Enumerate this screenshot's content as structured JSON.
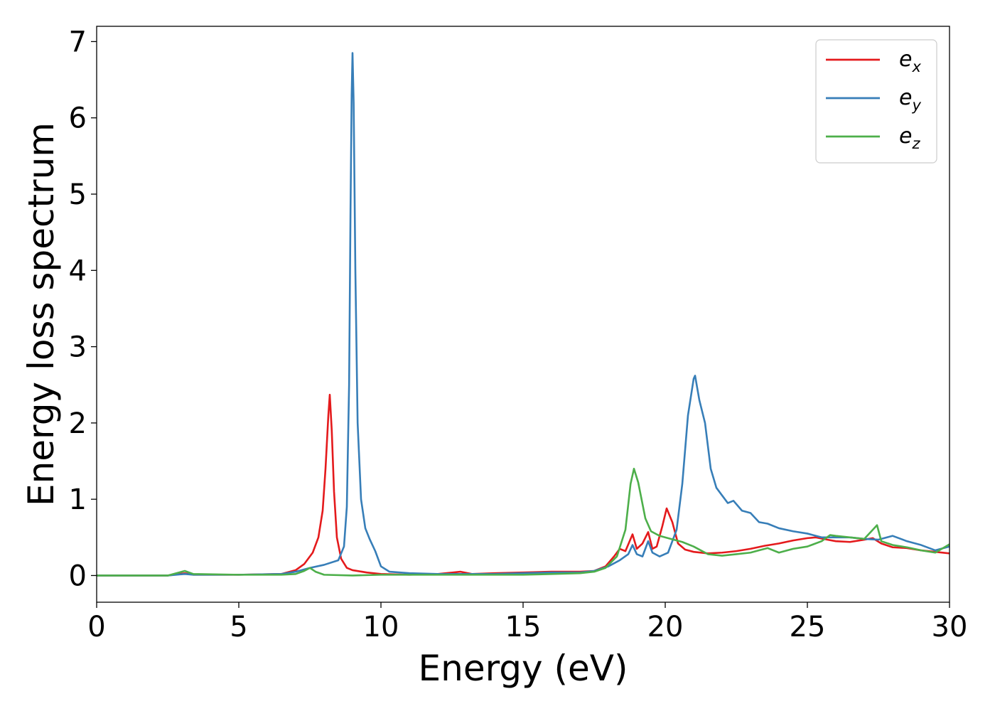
{
  "chart_data": {
    "type": "line",
    "title": "",
    "xlabel": "Energy (eV)",
    "ylabel": "Energy loss spectrum",
    "xlim": [
      0,
      30
    ],
    "ylim": [
      -0.35,
      7.2
    ],
    "xticks": [
      0,
      5,
      10,
      15,
      20,
      25,
      30
    ],
    "yticks": [
      0,
      1,
      2,
      3,
      4,
      5,
      6,
      7
    ],
    "grid": false,
    "legend_position": "top-right",
    "series": [
      {
        "name": "e_x",
        "label_main": "e",
        "label_sub": "x",
        "color": "#e41a1c",
        "points": [
          [
            0,
            0
          ],
          [
            2.5,
            0.0
          ],
          [
            3.1,
            0.03
          ],
          [
            3.4,
            0.01
          ],
          [
            5,
            0.01
          ],
          [
            6.5,
            0.02
          ],
          [
            7.0,
            0.07
          ],
          [
            7.3,
            0.15
          ],
          [
            7.6,
            0.3
          ],
          [
            7.8,
            0.5
          ],
          [
            7.95,
            0.85
          ],
          [
            8.05,
            1.4
          ],
          [
            8.15,
            2.1
          ],
          [
            8.2,
            2.37
          ],
          [
            8.27,
            1.9
          ],
          [
            8.35,
            1.1
          ],
          [
            8.45,
            0.5
          ],
          [
            8.6,
            0.22
          ],
          [
            8.8,
            0.1
          ],
          [
            9.0,
            0.07
          ],
          [
            9.5,
            0.04
          ],
          [
            10,
            0.02
          ],
          [
            11,
            0.01
          ],
          [
            12,
            0.02
          ],
          [
            12.8,
            0.05
          ],
          [
            13.2,
            0.02
          ],
          [
            14,
            0.03
          ],
          [
            15,
            0.04
          ],
          [
            16,
            0.05
          ],
          [
            17,
            0.05
          ],
          [
            17.5,
            0.06
          ],
          [
            17.9,
            0.12
          ],
          [
            18.2,
            0.25
          ],
          [
            18.4,
            0.35
          ],
          [
            18.6,
            0.32
          ],
          [
            18.85,
            0.54
          ],
          [
            19.0,
            0.35
          ],
          [
            19.2,
            0.42
          ],
          [
            19.4,
            0.57
          ],
          [
            19.55,
            0.35
          ],
          [
            19.7,
            0.38
          ],
          [
            19.9,
            0.65
          ],
          [
            20.05,
            0.88
          ],
          [
            20.25,
            0.7
          ],
          [
            20.45,
            0.42
          ],
          [
            20.7,
            0.34
          ],
          [
            21,
            0.31
          ],
          [
            21.5,
            0.29
          ],
          [
            22,
            0.3
          ],
          [
            22.5,
            0.32
          ],
          [
            23,
            0.35
          ],
          [
            23.5,
            0.39
          ],
          [
            24,
            0.42
          ],
          [
            24.5,
            0.46
          ],
          [
            25,
            0.49
          ],
          [
            25.3,
            0.5
          ],
          [
            25.7,
            0.47
          ],
          [
            26,
            0.45
          ],
          [
            26.5,
            0.44
          ],
          [
            27,
            0.47
          ],
          [
            27.3,
            0.49
          ],
          [
            27.6,
            0.42
          ],
          [
            28,
            0.37
          ],
          [
            28.5,
            0.36
          ],
          [
            29,
            0.33
          ],
          [
            29.5,
            0.31
          ],
          [
            30,
            0.29
          ]
        ]
      },
      {
        "name": "e_y",
        "label_main": "e",
        "label_sub": "y",
        "color": "#377eb8",
        "points": [
          [
            0,
            0
          ],
          [
            2.5,
            0.0
          ],
          [
            3.1,
            0.02
          ],
          [
            3.4,
            0.01
          ],
          [
            5,
            0.01
          ],
          [
            6.5,
            0.02
          ],
          [
            7.0,
            0.05
          ],
          [
            7.5,
            0.1
          ],
          [
            8.0,
            0.14
          ],
          [
            8.5,
            0.2
          ],
          [
            8.7,
            0.38
          ],
          [
            8.8,
            0.9
          ],
          [
            8.88,
            2.5
          ],
          [
            8.93,
            4.8
          ],
          [
            8.97,
            6.3
          ],
          [
            9.0,
            6.85
          ],
          [
            9.04,
            6.2
          ],
          [
            9.1,
            4.0
          ],
          [
            9.18,
            2.0
          ],
          [
            9.3,
            1.0
          ],
          [
            9.45,
            0.62
          ],
          [
            9.6,
            0.48
          ],
          [
            9.8,
            0.32
          ],
          [
            10.0,
            0.12
          ],
          [
            10.3,
            0.05
          ],
          [
            11,
            0.03
          ],
          [
            12,
            0.02
          ],
          [
            13,
            0.02
          ],
          [
            14,
            0.02
          ],
          [
            15,
            0.03
          ],
          [
            16,
            0.04
          ],
          [
            17,
            0.04
          ],
          [
            17.5,
            0.06
          ],
          [
            18.0,
            0.12
          ],
          [
            18.4,
            0.2
          ],
          [
            18.7,
            0.28
          ],
          [
            18.85,
            0.4
          ],
          [
            19.0,
            0.28
          ],
          [
            19.2,
            0.25
          ],
          [
            19.4,
            0.45
          ],
          [
            19.55,
            0.3
          ],
          [
            19.8,
            0.25
          ],
          [
            20.1,
            0.3
          ],
          [
            20.4,
            0.6
          ],
          [
            20.6,
            1.2
          ],
          [
            20.8,
            2.1
          ],
          [
            21.0,
            2.58
          ],
          [
            21.05,
            2.62
          ],
          [
            21.2,
            2.3
          ],
          [
            21.4,
            2.0
          ],
          [
            21.6,
            1.4
          ],
          [
            21.8,
            1.15
          ],
          [
            22.0,
            1.05
          ],
          [
            22.2,
            0.95
          ],
          [
            22.4,
            0.98
          ],
          [
            22.7,
            0.85
          ],
          [
            23.0,
            0.82
          ],
          [
            23.3,
            0.7
          ],
          [
            23.6,
            0.68
          ],
          [
            24.0,
            0.62
          ],
          [
            24.5,
            0.58
          ],
          [
            25,
            0.55
          ],
          [
            25.5,
            0.5
          ],
          [
            26,
            0.5
          ],
          [
            26.5,
            0.5
          ],
          [
            27,
            0.48
          ],
          [
            27.5,
            0.47
          ],
          [
            28,
            0.52
          ],
          [
            28.5,
            0.45
          ],
          [
            29,
            0.4
          ],
          [
            29.5,
            0.33
          ],
          [
            30,
            0.38
          ]
        ]
      },
      {
        "name": "e_z",
        "label_main": "e",
        "label_sub": "z",
        "color": "#4daf4a",
        "points": [
          [
            0,
            0
          ],
          [
            2.5,
            0.0
          ],
          [
            3.1,
            0.06
          ],
          [
            3.4,
            0.02
          ],
          [
            5,
            0.01
          ],
          [
            6.5,
            0.01
          ],
          [
            7.0,
            0.02
          ],
          [
            7.3,
            0.06
          ],
          [
            7.5,
            0.1
          ],
          [
            7.7,
            0.05
          ],
          [
            8.0,
            0.01
          ],
          [
            9,
            0.0
          ],
          [
            10,
            0.01
          ],
          [
            11,
            0.01
          ],
          [
            12,
            0.01
          ],
          [
            13,
            0.01
          ],
          [
            14,
            0.01
          ],
          [
            15,
            0.01
          ],
          [
            16,
            0.02
          ],
          [
            17,
            0.03
          ],
          [
            17.5,
            0.05
          ],
          [
            17.9,
            0.1
          ],
          [
            18.3,
            0.25
          ],
          [
            18.6,
            0.6
          ],
          [
            18.78,
            1.2
          ],
          [
            18.9,
            1.4
          ],
          [
            19.05,
            1.22
          ],
          [
            19.3,
            0.75
          ],
          [
            19.5,
            0.58
          ],
          [
            19.8,
            0.52
          ],
          [
            20.2,
            0.48
          ],
          [
            20.6,
            0.44
          ],
          [
            21.0,
            0.38
          ],
          [
            21.5,
            0.28
          ],
          [
            22,
            0.26
          ],
          [
            22.5,
            0.28
          ],
          [
            23,
            0.3
          ],
          [
            23.3,
            0.33
          ],
          [
            23.6,
            0.36
          ],
          [
            24,
            0.3
          ],
          [
            24.5,
            0.35
          ],
          [
            25,
            0.38
          ],
          [
            25.5,
            0.45
          ],
          [
            25.8,
            0.53
          ],
          [
            26,
            0.52
          ],
          [
            26.5,
            0.5
          ],
          [
            27,
            0.48
          ],
          [
            27.3,
            0.6
          ],
          [
            27.45,
            0.66
          ],
          [
            27.6,
            0.45
          ],
          [
            28,
            0.4
          ],
          [
            28.5,
            0.37
          ],
          [
            29,
            0.33
          ],
          [
            29.5,
            0.3
          ],
          [
            30,
            0.41
          ]
        ]
      }
    ]
  }
}
